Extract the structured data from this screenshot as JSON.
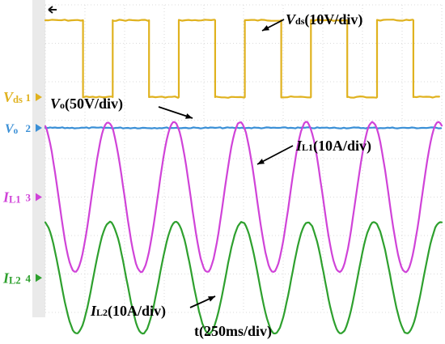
{
  "chart_data": {
    "type": "line",
    "title": "",
    "xlabel": "t(250ms/div)",
    "x_scale": "250ms/div",
    "grid": true,
    "grid_divisions": {
      "x": 10,
      "y": 8
    },
    "series": [
      {
        "id": "vds",
        "name": "Vds",
        "symbol": "V",
        "subscript": "ds",
        "scale_text": "(10V/div)",
        "channel": "1",
        "color": "#e0b21f",
        "waveform": "square",
        "cycles": 6,
        "high_div": 7.6,
        "low_div": 5.6,
        "duty": 0.55
      },
      {
        "id": "vo",
        "name": "Vo",
        "symbol": "V",
        "subscript": "o",
        "scale_text": "(50V/div)",
        "channel": "2",
        "color": "#3a8fd6",
        "waveform": "dc",
        "level_div": 4.8
      },
      {
        "id": "il1",
        "name": "IL1",
        "symbol": "I",
        "subscript": "L1",
        "scale_text": "(10A/div)",
        "channel": "3",
        "color": "#d043d8",
        "waveform": "sine",
        "cycles": 6,
        "offset_div": 3.0,
        "amplitude_div": 1.95
      },
      {
        "id": "il2",
        "name": "IL2",
        "symbol": "I",
        "subscript": "L2",
        "scale_text": "(10A/div)",
        "channel": "4",
        "color": "#2ea02e",
        "waveform": "sine",
        "cycles": 6,
        "offset_div": 0.9,
        "amplitude_div": 1.45
      }
    ]
  },
  "icons": {
    "trigger_marker": "left-arrow-icon",
    "channel_marker": "arrow-marker-icon"
  },
  "grid_color": "#cfcfcf",
  "screen_background": "#ffffff"
}
